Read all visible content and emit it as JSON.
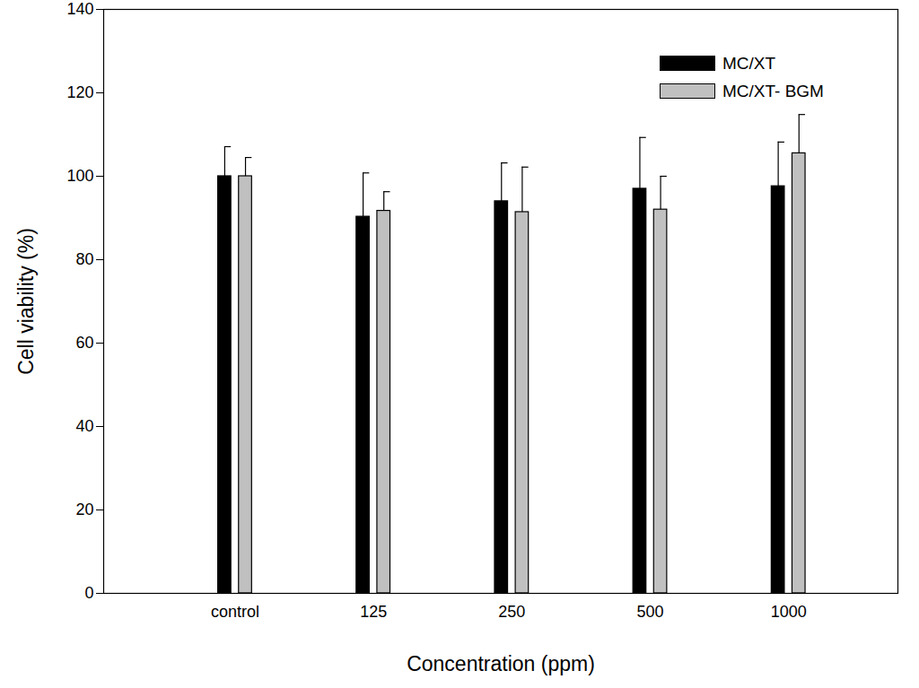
{
  "chart_data": {
    "type": "bar",
    "xlabel": "Concentration (ppm)",
    "ylabel": "Cell viability (%)",
    "categories": [
      "control",
      "125",
      "250",
      "500",
      "1000"
    ],
    "series": [
      {
        "name": "MC/XT",
        "color": "#000000",
        "values": [
          100,
          90.3,
          94,
          97,
          97.6
        ],
        "errors": [
          7.1,
          10.5,
          9.2,
          12.3,
          10.6
        ]
      },
      {
        "name": "MC/XT- BGM",
        "color": "#c0c0c0",
        "values": [
          100,
          91.7,
          91.4,
          92,
          105.5
        ],
        "errors": [
          4.5,
          4.6,
          10.8,
          8,
          9.3
        ]
      }
    ],
    "ylim": [
      0,
      140
    ],
    "yticks": [
      0,
      20,
      40,
      60,
      80,
      100,
      120,
      140
    ],
    "grid": false,
    "legend": "upper right"
  }
}
